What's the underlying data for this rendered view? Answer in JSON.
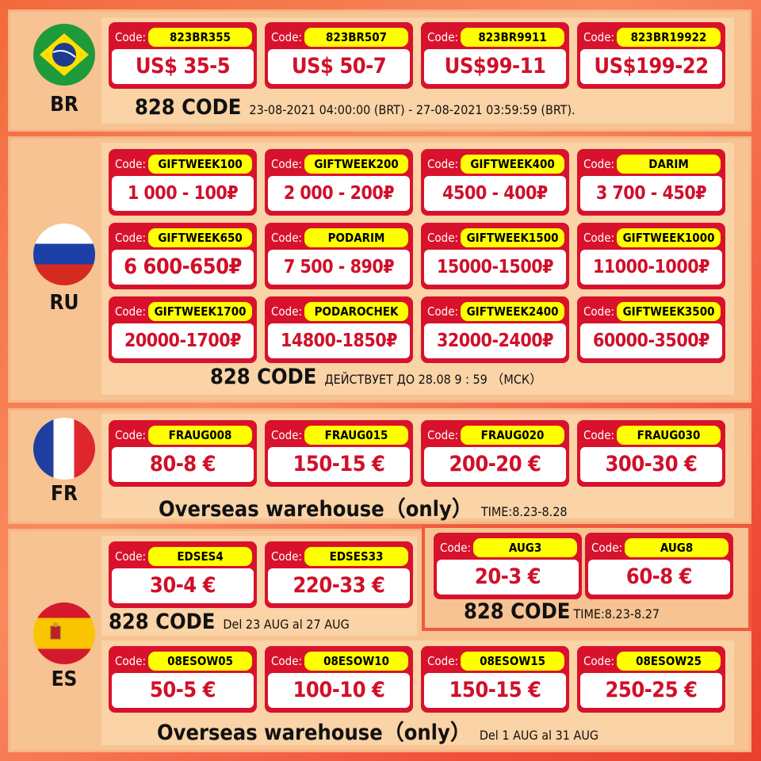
{
  "sections": {
    "br": {
      "country": "BR",
      "flag": "brazil-flag",
      "code_label": "Code:",
      "coupons": [
        {
          "code": "823BR355",
          "amount": "US$ 35-5"
        },
        {
          "code": "823BR507",
          "amount": "US$ 50-7"
        },
        {
          "code": "823BR9911",
          "amount": "US$99-11"
        },
        {
          "code": "823BR19922",
          "amount": "US$199-22"
        }
      ],
      "footer_title": "828 CODE",
      "footer_text": "23-08-2021 04:00:00 (BRT) - 27-08-2021 03:59:59 (BRT)."
    },
    "ru": {
      "country": "RU",
      "flag": "russia-flag",
      "code_label": "Code:",
      "coupons": [
        {
          "code": "GIFTWEEK100",
          "amount": "1 000 - 100₽"
        },
        {
          "code": "GIFTWEEK200",
          "amount": "2 000 - 200₽"
        },
        {
          "code": "GIFTWEEK400",
          "amount": "4500 - 400₽"
        },
        {
          "code": "DARIM",
          "amount": "3 700 - 450₽"
        },
        {
          "code": "GIFTWEEK650",
          "amount": "6 600-650₽"
        },
        {
          "code": "PODARIM",
          "amount": "7 500 - 890₽"
        },
        {
          "code": "GIFTWEEK1500",
          "amount": "15000-1500₽"
        },
        {
          "code": "GIFTWEEK1000",
          "amount": "11000-1000₽"
        },
        {
          "code": "GIFTWEEK1700",
          "amount": "20000-1700₽"
        },
        {
          "code": "PODAROCHEK",
          "amount": "14800-1850₽"
        },
        {
          "code": "GIFTWEEK2400",
          "amount": "32000-2400₽"
        },
        {
          "code": "GIFTWEEK3500",
          "amount": "60000-3500₽"
        }
      ],
      "footer_title": "828 CODE",
      "footer_text": "ДЕЙСТВУЕТ ДО 28.08 9 : 59 （МСК）"
    },
    "fr": {
      "country": "FR",
      "flag": "france-flag",
      "code_label": "Code:",
      "coupons": [
        {
          "code": "FRAUG008",
          "amount": "80-8 €"
        },
        {
          "code": "FRAUG015",
          "amount": "150-15 €"
        },
        {
          "code": "FRAUG020",
          "amount": "200-20 €"
        },
        {
          "code": "FRAUG030",
          "amount": "300-30 €"
        }
      ],
      "footer_title": "Overseas warehouse（only）",
      "footer_text": "TIME:8.23-8.28"
    },
    "es": {
      "country": "ES",
      "flag": "spain-flag",
      "code_label": "Code:",
      "group1": {
        "coupons": [
          {
            "code": "EDSES4",
            "amount": "30-4 €"
          },
          {
            "code": "EDSES33",
            "amount": "220-33 €"
          }
        ],
        "footer_title": "828 CODE",
        "footer_text": "Del 23 AUG al 27 AUG"
      },
      "group2": {
        "coupons": [
          {
            "code": "AUG3",
            "amount": "20-3 €"
          },
          {
            "code": "AUG8",
            "amount": "60-8 €"
          }
        ],
        "footer_title": "828 CODE",
        "footer_text": "TIME:8.23-8.27"
      },
      "group3": {
        "coupons": [
          {
            "code": "08ESOW05",
            "amount": "50-5 €"
          },
          {
            "code": "08ESOW10",
            "amount": "100-10 €"
          },
          {
            "code": "08ESOW15",
            "amount": "150-15 €"
          },
          {
            "code": "08ESOW25",
            "amount": "250-25 €"
          }
        ],
        "footer_title": "Overseas warehouse（only）",
        "footer_text": "Del 1 AUG al 31 AUG"
      }
    }
  },
  "colors": {
    "card_red": "#d8122c",
    "code_yellow": "#ffff00",
    "panel": "#f7c392"
  }
}
